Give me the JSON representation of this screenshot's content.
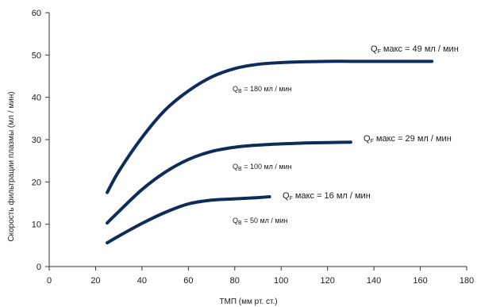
{
  "chart_data": {
    "type": "line",
    "title": "",
    "xlabel": "ТМП (мм рт. ст.)",
    "ylabel": "Скорость фильтрации плазмы (мл / мин)",
    "xlim": [
      0,
      180
    ],
    "ylim": [
      0,
      60
    ],
    "xticks": [
      0,
      20,
      40,
      60,
      80,
      100,
      120,
      140,
      160,
      180
    ],
    "yticks": [
      0,
      10,
      20,
      30,
      40,
      50,
      60
    ],
    "grid": false,
    "line_color": "#0d2c59",
    "series": [
      {
        "x": [
          25,
          30,
          40,
          50,
          60,
          70,
          80,
          90,
          100,
          110,
          120,
          130,
          140,
          150,
          165
        ],
        "y": [
          17.5,
          22.5,
          30.5,
          37,
          41.5,
          44.8,
          46.8,
          47.8,
          48.2,
          48.4,
          48.5,
          48.5,
          48.5,
          48.5,
          48.5
        ]
      },
      {
        "x": [
          25,
          30,
          40,
          50,
          60,
          70,
          80,
          90,
          100,
          110,
          120,
          130
        ],
        "y": [
          10.3,
          13,
          18.2,
          22.3,
          25.3,
          27.2,
          28.2,
          28.7,
          29,
          29.2,
          29.3,
          29.4
        ]
      },
      {
        "x": [
          25,
          30,
          40,
          50,
          60,
          70,
          80,
          90,
          95
        ],
        "y": [
          5.6,
          7.2,
          10.2,
          12.8,
          14.8,
          15.7,
          16,
          16.3,
          16.5
        ]
      }
    ],
    "annotations": [
      {
        "sym": "Q",
        "sub": "F",
        "text": " макс = 49 мл / мин"
      },
      {
        "sym": "Q",
        "sub": "F",
        "text": " макс = 29 мл / мин"
      },
      {
        "sym": "Q",
        "sub": "F",
        "text": " макс = 16 мл / мин"
      },
      {
        "sym": "Q",
        "sub": "B",
        "text": " = 180 мл / мин"
      },
      {
        "sym": "Q",
        "sub": "B",
        "text": " = 100 мл / мин"
      },
      {
        "sym": "Q",
        "sub": "B",
        "text": " = 50 мл / мин"
      }
    ]
  }
}
